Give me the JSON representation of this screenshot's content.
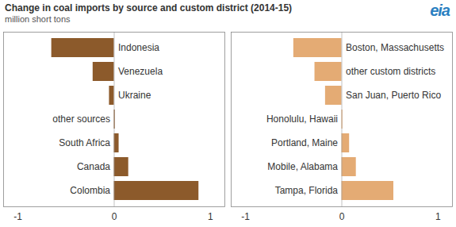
{
  "title": "Change in coal imports by source and custom district (2014-15)",
  "subtitle": "million short tons",
  "logo": "eia",
  "chart_data": [
    {
      "type": "bar",
      "orientation": "horizontal",
      "categories": [
        "Indonesia",
        "Venezuela",
        "Ukraine",
        "other sources",
        "South Africa",
        "Canada",
        "Colombia"
      ],
      "values": [
        -0.65,
        -0.22,
        -0.05,
        0.01,
        0.05,
        0.15,
        0.88
      ],
      "color": "#8c5a2b",
      "xlim": [
        -1.15,
        1.15
      ],
      "xticks": [
        -1,
        0,
        1
      ],
      "grid": false
    },
    {
      "type": "bar",
      "orientation": "horizontal",
      "categories": [
        "Boston, Massachusetts",
        "other custom districts",
        "San Juan, Puerto Rico",
        "Honolulu, Hawaii",
        "Portland, Maine",
        "Mobile, Alabama",
        "Tampa, Florida"
      ],
      "values": [
        -0.5,
        -0.28,
        -0.17,
        0.01,
        0.08,
        0.15,
        0.54
      ],
      "color": "#e4ab74",
      "xlim": [
        -1.15,
        1.15
      ],
      "xticks": [
        -1,
        0,
        1
      ],
      "grid": false
    }
  ]
}
